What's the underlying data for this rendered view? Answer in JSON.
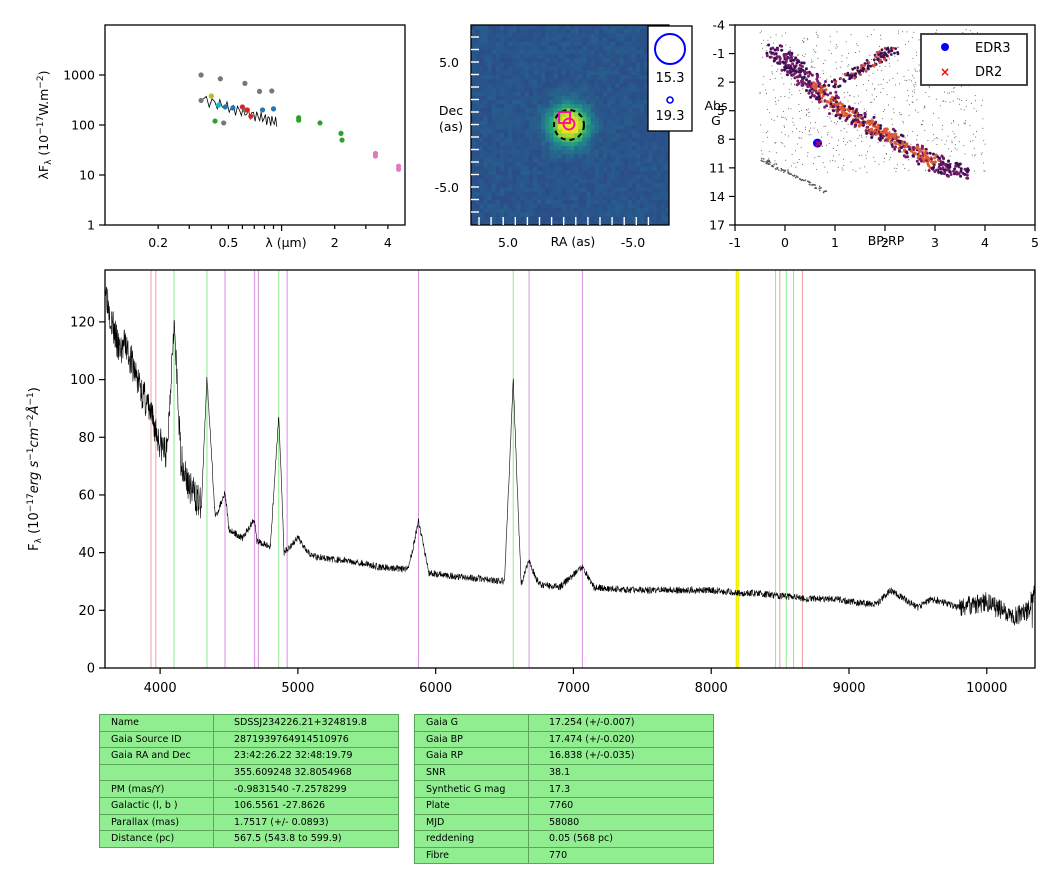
{
  "sed": {
    "ylabel": "λF_λ (10^-17 W.m^-2)",
    "xlabel": "λ (μm)",
    "xticks": [
      "0.2",
      "0.5",
      "2",
      "4"
    ],
    "yticks": [
      "1",
      "10",
      "100",
      "1000"
    ],
    "points": [
      {
        "x": 0.35,
        "y": 1000,
        "color": "#777777"
      },
      {
        "x": 0.35,
        "y": 310,
        "color": "#777777"
      },
      {
        "x": 0.45,
        "y": 840,
        "color": "#777777"
      },
      {
        "x": 0.47,
        "y": 110,
        "color": "#777777"
      },
      {
        "x": 0.62,
        "y": 680,
        "color": "#777777"
      },
      {
        "x": 0.75,
        "y": 470,
        "color": "#777777"
      },
      {
        "x": 0.88,
        "y": 480,
        "color": "#777777"
      },
      {
        "x": 0.62,
        "y": 200,
        "color": "#777777"
      },
      {
        "x": 0.4,
        "y": 380,
        "color": "#bcbd22"
      },
      {
        "x": 0.42,
        "y": 120,
        "color": "#2ca02c"
      },
      {
        "x": 0.48,
        "y": 230,
        "color": "#1f77b4"
      },
      {
        "x": 0.53,
        "y": 220,
        "color": "#1f77b4"
      },
      {
        "x": 0.6,
        "y": 230,
        "color": "#d62728"
      },
      {
        "x": 0.64,
        "y": 200,
        "color": "#d62728"
      },
      {
        "x": 0.67,
        "y": 150,
        "color": "#d62728"
      },
      {
        "x": 0.78,
        "y": 200,
        "color": "#1f77b4"
      },
      {
        "x": 0.9,
        "y": 210,
        "color": "#1f77b4"
      },
      {
        "x": 0.44,
        "y": 250,
        "color": "#17becf"
      },
      {
        "x": 1.25,
        "y": 140,
        "color": "#2ca02c"
      },
      {
        "x": 1.25,
        "y": 125,
        "color": "#2ca02c"
      },
      {
        "x": 1.65,
        "y": 110,
        "color": "#2ca02c"
      },
      {
        "x": 2.17,
        "y": 68,
        "color": "#2ca02c"
      },
      {
        "x": 2.2,
        "y": 50,
        "color": "#2ca02c"
      },
      {
        "x": 3.4,
        "y": 27,
        "color": "#e377c2"
      },
      {
        "x": 3.4,
        "y": 24,
        "color": "#e377c2"
      },
      {
        "x": 4.6,
        "y": 15,
        "color": "#e377c2"
      },
      {
        "x": 4.6,
        "y": 13,
        "color": "#e377c2"
      }
    ]
  },
  "image": {
    "ylabel": "Dec (as)",
    "xlabel": "RA (as)",
    "xticks": [
      "5.0",
      "-5.0"
    ],
    "yticks": [
      "5.0",
      "-5.0"
    ],
    "legend": [
      "15.3",
      "19.3"
    ]
  },
  "cmd": {
    "xlabel": "BP-RP",
    "ylabel": "Abs G",
    "xticks": [
      "-1",
      "0",
      "1",
      "2",
      "3",
      "4",
      "5"
    ],
    "yticks": [
      "-4",
      "-1",
      "2",
      "5",
      "8",
      "11",
      "14",
      "17"
    ],
    "legend": [
      {
        "label": "EDR3",
        "color": "#0000ff",
        "marker": "circle"
      },
      {
        "label": "DR2",
        "color": "#ff0000",
        "marker": "x"
      }
    ],
    "target": {
      "bp_rp": 0.65,
      "abs_g": 8.4
    }
  },
  "chart_data": {
    "type": "line",
    "ylabel": "F_λ (10^-17 erg s^-1 cm^-2 Å^-1)",
    "xlim": [
      3600,
      10350
    ],
    "ylim": [
      0,
      138
    ],
    "xticks": [
      "4000",
      "5000",
      "6000",
      "7000",
      "8000",
      "9000",
      "10000"
    ],
    "yticks": [
      "0",
      "20",
      "40",
      "60",
      "80",
      "100",
      "120"
    ],
    "series": [
      {
        "x": [
          3600,
          3650,
          3700,
          3750,
          3800,
          3850,
          3900,
          3950,
          4000,
          4050,
          4100,
          4150,
          4200,
          4250,
          4300,
          4340,
          4400,
          4471,
          4500,
          4600,
          4686,
          4700,
          4800,
          4861,
          4900,
          5000,
          5100,
          5200,
          5400,
          5600,
          5800,
          5876,
          5950,
          6100,
          6300,
          6500,
          6563,
          6620,
          6678,
          6750,
          6900,
          7065,
          7150,
          7400,
          7600,
          7800,
          8000,
          8200,
          8300,
          8500,
          8700,
          8900,
          9000,
          9200,
          9300,
          9500,
          9600,
          9800,
          10000,
          10100,
          10200,
          10300,
          10350
        ],
        "y": [
          133,
          120,
          110,
          112,
          105,
          98,
          92,
          85,
          78,
          74,
          121,
          73,
          64,
          60,
          56,
          101,
          52,
          61,
          48,
          45,
          52,
          44,
          42,
          88,
          40,
          45,
          39,
          38,
          37,
          35,
          34,
          51,
          33,
          32,
          31,
          30,
          100,
          29,
          37,
          29,
          28,
          35,
          28,
          27,
          27,
          27,
          27,
          26,
          26,
          25,
          24,
          24,
          23,
          22,
          27,
          21,
          24,
          21,
          23,
          20,
          18,
          20,
          28
        ]
      }
    ],
    "lines": {
      "green": [
        4101,
        4340,
        4861,
        6563,
        8467,
        8545,
        8598
      ],
      "violet": [
        4471,
        4686,
        4713,
        4922,
        5876,
        6678,
        7065
      ],
      "red": [
        3934,
        3969,
        8498,
        8662
      ],
      "yellow": [
        8183,
        8195
      ]
    }
  },
  "table_left": [
    {
      "k": "Name",
      "v": "SDSSJ234226.21+324819.8"
    },
    {
      "k": "Gaia Source ID",
      "v": "2871939764914510976"
    },
    {
      "k": "Gaia RA and Dec",
      "v": "23:42:26.22    32:48:19.79"
    },
    {
      "k": "",
      "v": "355.609248    32.8054968"
    },
    {
      "k": "PM (mas/Y)",
      "v": "-0.9831540    -7.2578299"
    },
    {
      "k": "Galactic (l, b )",
      "v": "106.5561    -27.8626"
    },
    {
      "k": "Parallax (mas)",
      "v": "1.7517 (+/- 0.0893)"
    },
    {
      "k": "Distance (pc)",
      "v": "567.5 (543.8 to 599.9)"
    }
  ],
  "table_right": [
    {
      "k": "Gaia G",
      "v": "17.254 (+/-0.007)"
    },
    {
      "k": "Gaia BP",
      "v": "17.474 (+/-0.020)"
    },
    {
      "k": "Gaia RP",
      "v": "16.838 (+/-0.035)"
    },
    {
      "k": "SNR",
      "v": "38.1"
    },
    {
      "k": "Synthetic G mag",
      "v": "17.3"
    },
    {
      "k": "Plate",
      "v": "7760"
    },
    {
      "k": "MJD",
      "v": "58080"
    },
    {
      "k": "reddening",
      "v": "0.05 (568 pc)"
    },
    {
      "k": "Fibre",
      "v": "770"
    }
  ]
}
